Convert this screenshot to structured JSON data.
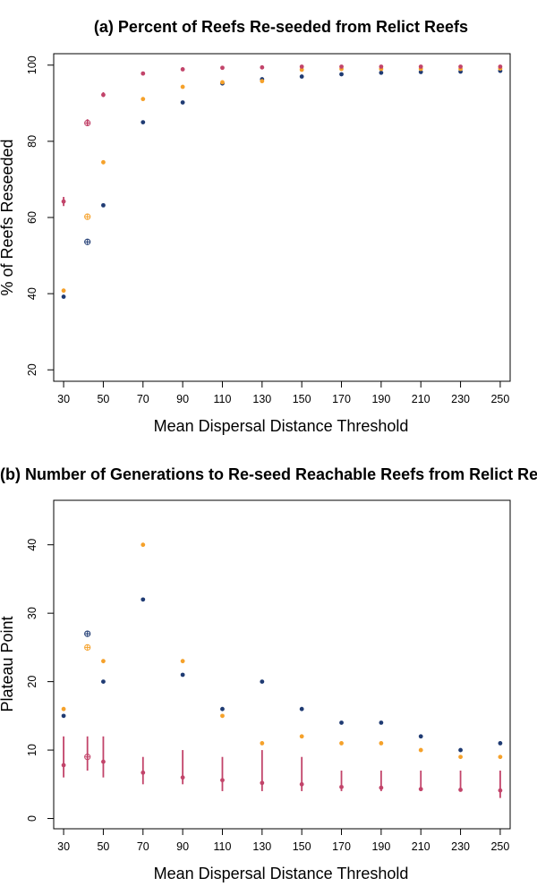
{
  "colors": {
    "navy": "#1f3b73",
    "orange": "#f5a12a",
    "crimson": "#c2446a"
  },
  "chart_data": [
    {
      "type": "scatter",
      "title": "(a) Percent of Reefs Re-seeded from Relict Reefs",
      "xlabel": "Mean Dispersal Distance Threshold",
      "ylabel": "%  of Reefs Reseeded",
      "xlim": [
        25,
        255
      ],
      "ylim": [
        17,
        103
      ],
      "x_ticks": [
        30,
        50,
        70,
        90,
        110,
        130,
        150,
        170,
        190,
        210,
        230,
        250
      ],
      "y_ticks": [
        20,
        40,
        60,
        80,
        100
      ],
      "grid": false,
      "legend": "none",
      "series": [
        {
          "color": "#1f3b73",
          "points": [
            {
              "x": 30,
              "y": 39.2
            },
            {
              "x": 42,
              "y": 53.6,
              "open": true
            },
            {
              "x": 50,
              "y": 63.2
            },
            {
              "x": 70,
              "y": 85.0
            },
            {
              "x": 90,
              "y": 90.2
            },
            {
              "x": 110,
              "y": 95.2
            },
            {
              "x": 130,
              "y": 96.3
            },
            {
              "x": 150,
              "y": 97.0
            },
            {
              "x": 170,
              "y": 97.6
            },
            {
              "x": 190,
              "y": 98.0
            },
            {
              "x": 210,
              "y": 98.2
            },
            {
              "x": 230,
              "y": 98.3
            },
            {
              "x": 250,
              "y": 98.5
            }
          ]
        },
        {
          "color": "#f5a12a",
          "points": [
            {
              "x": 30,
              "y": 40.8
            },
            {
              "x": 42,
              "y": 60.2,
              "open": true
            },
            {
              "x": 50,
              "y": 74.5
            },
            {
              "x": 70,
              "y": 91.1
            },
            {
              "x": 90,
              "y": 94.3
            },
            {
              "x": 110,
              "y": 95.5
            },
            {
              "x": 130,
              "y": 95.8
            },
            {
              "x": 150,
              "y": 98.8
            },
            {
              "x": 170,
              "y": 99.0
            },
            {
              "x": 190,
              "y": 99.0
            },
            {
              "x": 210,
              "y": 99.0
            },
            {
              "x": 230,
              "y": 99.0
            },
            {
              "x": 250,
              "y": 99.1
            }
          ]
        },
        {
          "color": "#c2446a",
          "points": [
            {
              "x": 30,
              "y": 64.2,
              "ylow": 63.0,
              "yhigh": 65.4
            },
            {
              "x": 42,
              "y": 84.8,
              "ylow": 84.0,
              "yhigh": 85.8,
              "open": true
            },
            {
              "x": 50,
              "y": 92.2,
              "ylow": 91.6,
              "yhigh": 92.9
            },
            {
              "x": 70,
              "y": 97.8
            },
            {
              "x": 90,
              "y": 98.9
            },
            {
              "x": 110,
              "y": 99.3
            },
            {
              "x": 130,
              "y": 99.4
            },
            {
              "x": 150,
              "y": 99.6
            },
            {
              "x": 170,
              "y": 99.6
            },
            {
              "x": 190,
              "y": 99.6
            },
            {
              "x": 210,
              "y": 99.6
            },
            {
              "x": 230,
              "y": 99.6
            },
            {
              "x": 250,
              "y": 99.6
            }
          ]
        }
      ]
    },
    {
      "type": "scatter",
      "title": "(b) Number of Generations to Re-seed Reachable Reefs from Relict Reefs",
      "xlabel": "Mean Dispersal Distance Threshold",
      "ylabel": "Plateau Point",
      "xlim": [
        25,
        255
      ],
      "ylim": [
        -1.5,
        46.5
      ],
      "x_ticks": [
        30,
        50,
        70,
        90,
        110,
        130,
        150,
        170,
        190,
        210,
        230,
        250
      ],
      "y_ticks": [
        0,
        10,
        20,
        30,
        40
      ],
      "grid": false,
      "legend": "none",
      "series": [
        {
          "color": "#1f3b73",
          "points": [
            {
              "x": 30,
              "y": 15
            },
            {
              "x": 42,
              "y": 27,
              "open": true
            },
            {
              "x": 50,
              "y": 20
            },
            {
              "x": 70,
              "y": 32
            },
            {
              "x": 90,
              "y": 21
            },
            {
              "x": 110,
              "y": 16
            },
            {
              "x": 130,
              "y": 20
            },
            {
              "x": 150,
              "y": 16
            },
            {
              "x": 170,
              "y": 14
            },
            {
              "x": 190,
              "y": 14
            },
            {
              "x": 210,
              "y": 12
            },
            {
              "x": 230,
              "y": 10
            },
            {
              "x": 250,
              "y": 11
            }
          ]
        },
        {
          "color": "#f5a12a",
          "points": [
            {
              "x": 30,
              "y": 16
            },
            {
              "x": 42,
              "y": 25,
              "open": true
            },
            {
              "x": 50,
              "y": 23
            },
            {
              "x": 70,
              "y": 40
            },
            {
              "x": 90,
              "y": 23
            },
            {
              "x": 110,
              "y": 15
            },
            {
              "x": 130,
              "y": 11
            },
            {
              "x": 150,
              "y": 12
            },
            {
              "x": 170,
              "y": 11
            },
            {
              "x": 190,
              "y": 11
            },
            {
              "x": 210,
              "y": 10
            },
            {
              "x": 230,
              "y": 9
            },
            {
              "x": 250,
              "y": 9
            }
          ]
        },
        {
          "color": "#c2446a",
          "points": [
            {
              "x": 30,
              "y": 7.8,
              "ylow": 6,
              "yhigh": 12
            },
            {
              "x": 42,
              "y": 9.0,
              "ylow": 7,
              "yhigh": 12,
              "open": true
            },
            {
              "x": 50,
              "y": 8.3,
              "ylow": 6,
              "yhigh": 12
            },
            {
              "x": 70,
              "y": 6.7,
              "ylow": 5,
              "yhigh": 9
            },
            {
              "x": 90,
              "y": 6.0,
              "ylow": 5,
              "yhigh": 10
            },
            {
              "x": 110,
              "y": 5.6,
              "ylow": 4,
              "yhigh": 9
            },
            {
              "x": 130,
              "y": 5.2,
              "ylow": 4,
              "yhigh": 10
            },
            {
              "x": 150,
              "y": 5.0,
              "ylow": 4,
              "yhigh": 9
            },
            {
              "x": 170,
              "y": 4.6,
              "ylow": 4,
              "yhigh": 7
            },
            {
              "x": 190,
              "y": 4.5,
              "ylow": 4,
              "yhigh": 7
            },
            {
              "x": 210,
              "y": 4.3,
              "ylow": 4,
              "yhigh": 7
            },
            {
              "x": 230,
              "y": 4.2,
              "ylow": 4,
              "yhigh": 7
            },
            {
              "x": 250,
              "y": 4.1,
              "ylow": 3,
              "yhigh": 7
            }
          ]
        }
      ]
    }
  ]
}
